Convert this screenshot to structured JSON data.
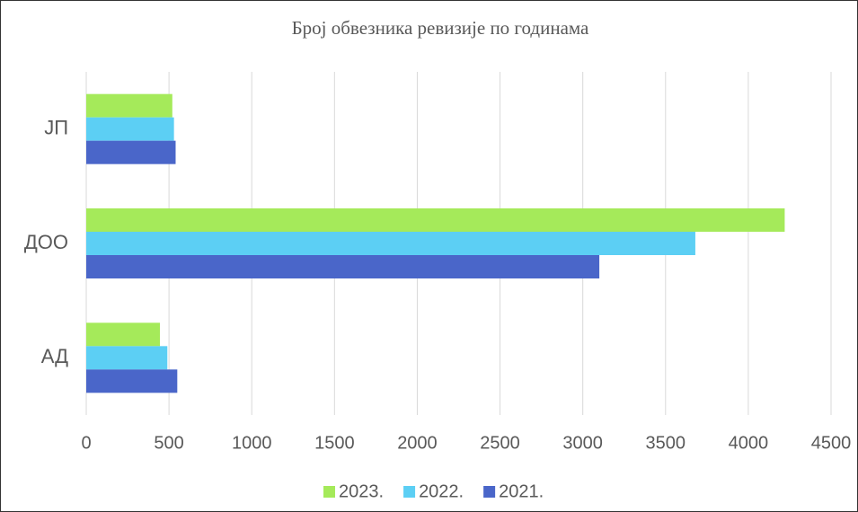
{
  "chart_data": {
    "type": "barh",
    "title": "Број обвезника ревизије по годинама",
    "categories": [
      "ЈП",
      "ДОО",
      "АД"
    ],
    "series": [
      {
        "name": "2023.",
        "color": "#a5ea5a",
        "values": [
          520,
          4220,
          445
        ]
      },
      {
        "name": "2022.",
        "color": "#5ccff4",
        "values": [
          530,
          3680,
          490
        ]
      },
      {
        "name": "2021.",
        "color": "#4a66c9",
        "values": [
          540,
          3100,
          550
        ]
      }
    ],
    "xlim": [
      0,
      4500
    ],
    "xticks": [
      0,
      500,
      1000,
      1500,
      2000,
      2500,
      3000,
      3500,
      4000,
      4500
    ],
    "grid": true,
    "legend": "bottom"
  }
}
